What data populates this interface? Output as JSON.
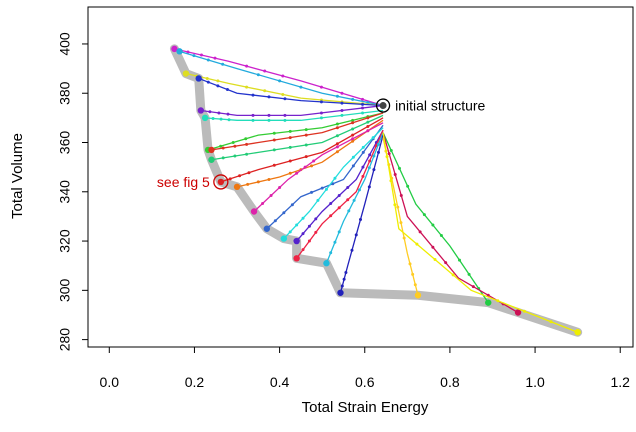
{
  "chart_data": {
    "type": "line",
    "title": "",
    "xlabel": "Total Strain Energy",
    "ylabel": "Total Volume",
    "xlim": [
      -0.05,
      1.23
    ],
    "ylim": [
      277,
      415
    ],
    "x_ticks": [
      0.0,
      0.2,
      0.4,
      0.6,
      0.8,
      1.0,
      1.2
    ],
    "x_tick_labels": [
      "0.0",
      "0.2",
      "0.4",
      "0.6",
      "0.8",
      "1.0",
      "1.2"
    ],
    "y_ticks": [
      280,
      300,
      320,
      340,
      360,
      380,
      400
    ],
    "y_tick_labels": [
      "280",
      "300",
      "320",
      "340",
      "360",
      "380",
      "400"
    ],
    "grid": false,
    "initial_point": {
      "x": 0.643,
      "y": 375
    },
    "pareto_front": {
      "color": "#bbbbbb",
      "points": [
        {
          "x": 0.153,
          "y": 398
        },
        {
          "x": 0.18,
          "y": 388
        },
        {
          "x": 0.21,
          "y": 386
        },
        {
          "x": 0.215,
          "y": 373
        },
        {
          "x": 0.225,
          "y": 370
        },
        {
          "x": 0.232,
          "y": 357
        },
        {
          "x": 0.24,
          "y": 353
        },
        {
          "x": 0.262,
          "y": 344
        },
        {
          "x": 0.3,
          "y": 342
        },
        {
          "x": 0.34,
          "y": 332
        },
        {
          "x": 0.37,
          "y": 325
        },
        {
          "x": 0.41,
          "y": 321
        },
        {
          "x": 0.44,
          "y": 320
        },
        {
          "x": 0.44,
          "y": 313
        },
        {
          "x": 0.51,
          "y": 311
        },
        {
          "x": 0.543,
          "y": 299
        },
        {
          "x": 0.725,
          "y": 298
        },
        {
          "x": 0.89,
          "y": 295
        },
        {
          "x": 0.96,
          "y": 291
        },
        {
          "x": 1.1,
          "y": 283
        }
      ]
    },
    "series": [
      {
        "color": "#cc22cc",
        "values": [
          [
            0.643,
            375
          ],
          [
            0.45,
            385
          ],
          [
            0.28,
            393
          ],
          [
            0.153,
            398
          ]
        ]
      },
      {
        "color": "#22aadd",
        "values": [
          [
            0.643,
            375
          ],
          [
            0.5,
            380
          ],
          [
            0.3,
            390
          ],
          [
            0.165,
            397
          ]
        ]
      },
      {
        "color": "#dddd22",
        "values": [
          [
            0.643,
            375
          ],
          [
            0.45,
            378
          ],
          [
            0.28,
            384
          ],
          [
            0.18,
            388
          ]
        ]
      },
      {
        "color": "#2233cc",
        "values": [
          [
            0.643,
            375
          ],
          [
            0.45,
            377
          ],
          [
            0.3,
            380
          ],
          [
            0.21,
            386
          ]
        ]
      },
      {
        "color": "#7722cc",
        "values": [
          [
            0.643,
            375
          ],
          [
            0.45,
            371
          ],
          [
            0.3,
            371
          ],
          [
            0.215,
            373
          ]
        ]
      },
      {
        "color": "#22ddbb",
        "values": [
          [
            0.643,
            373
          ],
          [
            0.45,
            369
          ],
          [
            0.3,
            369
          ],
          [
            0.225,
            370
          ]
        ]
      },
      {
        "color": "#33cc33",
        "values": [
          [
            0.643,
            372
          ],
          [
            0.5,
            366
          ],
          [
            0.35,
            363
          ],
          [
            0.232,
            357
          ]
        ]
      },
      {
        "color": "#dd3322",
        "values": [
          [
            0.643,
            372
          ],
          [
            0.5,
            364
          ],
          [
            0.35,
            360
          ],
          [
            0.24,
            357
          ]
        ]
      },
      {
        "color": "#22cc77",
        "values": [
          [
            0.643,
            371
          ],
          [
            0.5,
            360
          ],
          [
            0.35,
            356
          ],
          [
            0.24,
            353
          ]
        ]
      },
      {
        "color": "#dd2222",
        "values": [
          [
            0.643,
            370
          ],
          [
            0.5,
            356
          ],
          [
            0.35,
            349
          ],
          [
            0.262,
            344
          ]
        ]
      },
      {
        "color": "#ee7711",
        "values": [
          [
            0.643,
            369
          ],
          [
            0.5,
            352
          ],
          [
            0.4,
            346
          ],
          [
            0.3,
            342
          ]
        ]
      },
      {
        "color": "#dd22aa",
        "values": [
          [
            0.643,
            368
          ],
          [
            0.5,
            355
          ],
          [
            0.42,
            345
          ],
          [
            0.34,
            332
          ]
        ]
      },
      {
        "color": "#3366cc",
        "values": [
          [
            0.643,
            367
          ],
          [
            0.55,
            345
          ],
          [
            0.45,
            338
          ],
          [
            0.37,
            325
          ]
        ]
      },
      {
        "color": "#22dddd",
        "values": [
          [
            0.643,
            366
          ],
          [
            0.55,
            350
          ],
          [
            0.47,
            332
          ],
          [
            0.41,
            321
          ]
        ]
      },
      {
        "color": "#5522cc",
        "values": [
          [
            0.643,
            365
          ],
          [
            0.58,
            345
          ],
          [
            0.5,
            332
          ],
          [
            0.44,
            320
          ]
        ]
      },
      {
        "color": "#ee2244",
        "values": [
          [
            0.643,
            365
          ],
          [
            0.58,
            340
          ],
          [
            0.5,
            327
          ],
          [
            0.44,
            313
          ]
        ]
      },
      {
        "color": "#22bbdd",
        "values": [
          [
            0.643,
            364
          ],
          [
            0.6,
            345
          ],
          [
            0.55,
            328
          ],
          [
            0.51,
            311
          ]
        ]
      },
      {
        "color": "#2222bb",
        "values": [
          [
            0.643,
            363
          ],
          [
            0.6,
            335
          ],
          [
            0.56,
            310
          ],
          [
            0.543,
            299
          ]
        ]
      },
      {
        "color": "#ffcc22",
        "values": [
          [
            0.643,
            362
          ],
          [
            0.67,
            340
          ],
          [
            0.7,
            315
          ],
          [
            0.725,
            298
          ]
        ]
      },
      {
        "color": "#22cc44",
        "values": [
          [
            0.643,
            364
          ],
          [
            0.72,
            335
          ],
          [
            0.8,
            318
          ],
          [
            0.89,
            295
          ]
        ]
      },
      {
        "color": "#cc1155",
        "values": [
          [
            0.643,
            364
          ],
          [
            0.7,
            330
          ],
          [
            0.82,
            305
          ],
          [
            0.96,
            291
          ]
        ]
      },
      {
        "color": "#eeee00",
        "values": [
          [
            0.643,
            364
          ],
          [
            0.68,
            325
          ],
          [
            0.85,
            300
          ],
          [
            1.1,
            283
          ]
        ]
      }
    ],
    "annotations": [
      {
        "text": "initial structure",
        "x": 0.643,
        "y": 375,
        "color": "#000000",
        "side": "right"
      },
      {
        "text": "see fig 5",
        "x": 0.262,
        "y": 344,
        "color": "#cc0000",
        "side": "left"
      }
    ]
  }
}
